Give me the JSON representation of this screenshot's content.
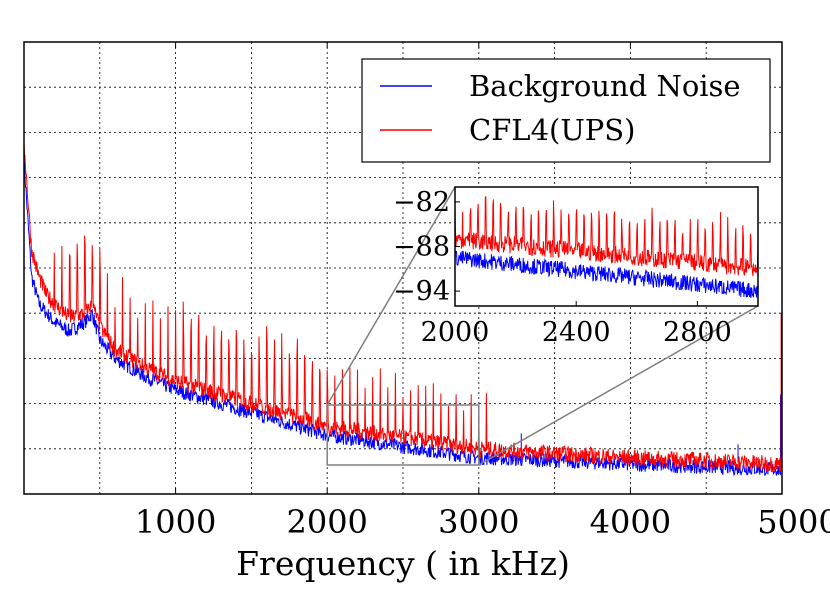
{
  "chart_data": {
    "type": "line",
    "title": "",
    "xlabel": "Frequency ( in kHz)",
    "ylabel": "",
    "xlim": [
      0,
      5000
    ],
    "ylim": [
      -115,
      -65
    ],
    "x_ticks": [
      1000,
      2000,
      3000,
      4000,
      5000
    ],
    "x_tick_labels": [
      "1000",
      "2000",
      "3000",
      "4000",
      "5000"
    ],
    "grid": true,
    "legend_position": "top-right",
    "series": [
      {
        "name": "Background Noise",
        "color": "#0000ff",
        "x": [
          0,
          50,
          100,
          150,
          200,
          300,
          400,
          450,
          500,
          600,
          800,
          1000,
          1200,
          1400,
          1600,
          1800,
          2000,
          2200,
          2400,
          2600,
          2800,
          3000,
          3500,
          4000,
          4500,
          5000
        ],
        "values": [
          -78,
          -91,
          -94,
          -95,
          -96,
          -97,
          -96,
          -95,
          -98,
          -100,
          -102,
          -103.5,
          -104.5,
          -105.5,
          -106.5,
          -107.5,
          -108.5,
          -109,
          -109.5,
          -110,
          -110.5,
          -111,
          -111.3,
          -111.7,
          -112,
          -112.3
        ]
      },
      {
        "name": "CFL4(UPS)",
        "color": "#ff0000",
        "x": [
          0,
          50,
          100,
          150,
          200,
          300,
          400,
          450,
          500,
          600,
          800,
          1000,
          1200,
          1400,
          1600,
          1800,
          2000,
          2200,
          2400,
          2600,
          2800,
          3000,
          3500,
          4000,
          4500,
          5000
        ],
        "values": [
          -76,
          -88,
          -91,
          -93,
          -94,
          -95.5,
          -95,
          -94,
          -96.5,
          -99,
          -101,
          -102.5,
          -103.5,
          -104.5,
          -105.5,
          -106.5,
          -107.5,
          -108,
          -108.5,
          -109,
          -109.5,
          -110,
          -110.5,
          -111,
          -111.3,
          -111.7
        ],
        "spikes_step": 50,
        "spikes_end": 3100
      }
    ],
    "inset": {
      "xlim": [
        2000,
        3000
      ],
      "ylim": [
        -96,
        -80
      ],
      "x_ticks": [
        2000,
        2400,
        2800
      ],
      "x_tick_labels": [
        "2000",
        "2400",
        "2800"
      ],
      "y_ticks": [
        -82,
        -88,
        -94
      ],
      "y_tick_labels": [
        "−82",
        "−88",
        "−94"
      ],
      "background_noise": {
        "start": -89.5,
        "end": -94
      },
      "cfl4_ups": {
        "start": -87,
        "end": -91,
        "spike_step": 25
      }
    }
  }
}
